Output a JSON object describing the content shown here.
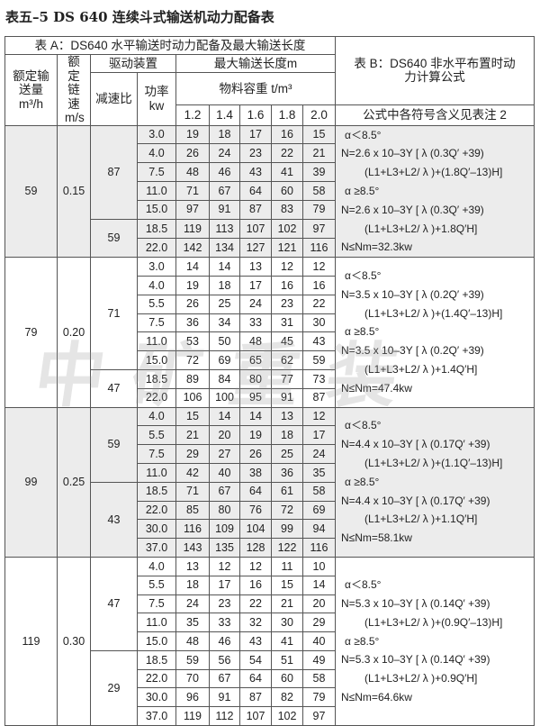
{
  "title": "表五–5 DS 640 连续斗式输送机动力配备表",
  "watermark": "中矿重装",
  "header": {
    "table_a": "表 A：DS640 水平输送时动力配备及最大输送长度",
    "table_b": "表 B：DS640 非水平布置时动力计算公式",
    "capacity": "额定输送量m³/h",
    "speed": "额定链速m/s",
    "drive": "驱动装置",
    "ratio": "减速比",
    "power": "功率kw",
    "max_length": "最大输送长度m",
    "density": "物料容重 t/m³",
    "densities": [
      "1.2",
      "1.4",
      "1.6",
      "1.8",
      "2.0"
    ],
    "note": "公式中各符号含义见表注 2"
  },
  "groups": [
    {
      "capacity": "59",
      "speed": "0.15",
      "shaded": true,
      "formula": [
        "α＜8.5°",
        "N=2.6 x 10–3Y [ λ (0.3Q′ +39)",
        "(L1+L3+L2/ λ )+(1.8Q′–13)H]",
        "α ≥8.5°",
        "N=2.6 x 10–3Y [ λ (0.3Q′ +39)",
        "(L1+L3+L2/ λ )+1.8Q′H]",
        "N≤Nm=32.3kw"
      ],
      "drives": [
        {
          "ratio": "87",
          "rows": [
            {
              "power": "3.0",
              "lengths": [
                "19",
                "18",
                "17",
                "16",
                "15"
              ]
            },
            {
              "power": "4.0",
              "lengths": [
                "26",
                "24",
                "23",
                "22",
                "21"
              ]
            },
            {
              "power": "7.5",
              "lengths": [
                "48",
                "46",
                "43",
                "41",
                "39"
              ]
            },
            {
              "power": "11.0",
              "lengths": [
                "71",
                "67",
                "64",
                "60",
                "58"
              ]
            },
            {
              "power": "15.0",
              "lengths": [
                "97",
                "91",
                "87",
                "83",
                "79"
              ]
            }
          ]
        },
        {
          "ratio": "59",
          "rows": [
            {
              "power": "18.5",
              "lengths": [
                "119",
                "113",
                "107",
                "102",
                "97"
              ]
            },
            {
              "power": "22.0",
              "lengths": [
                "142",
                "134",
                "127",
                "121",
                "116"
              ]
            }
          ]
        }
      ]
    },
    {
      "capacity": "79",
      "speed": "0.20",
      "shaded": false,
      "formula": [
        "α＜8.5°",
        "N=3.5 x 10–3Y [ λ (0.2Q′ +39)",
        "(L1+L3+L2/ λ )+(1.4Q′–13)H]",
        "α ≥8.5°",
        "N=3.5 x 10–3Y [ λ (0.2Q′ +39)",
        "(L1+L3+L2/ λ )+1.4Q′H]",
        "N≤Nm=47.4kw"
      ],
      "drives": [
        {
          "ratio": "71",
          "rows": [
            {
              "power": "3.0",
              "lengths": [
                "14",
                "14",
                "13",
                "12",
                "12"
              ]
            },
            {
              "power": "4.0",
              "lengths": [
                "19",
                "18",
                "17",
                "16",
                "16"
              ]
            },
            {
              "power": "5.5",
              "lengths": [
                "26",
                "25",
                "24",
                "23",
                "22"
              ]
            },
            {
              "power": "7.5",
              "lengths": [
                "36",
                "34",
                "33",
                "31",
                "30"
              ]
            },
            {
              "power": "11.0",
              "lengths": [
                "53",
                "50",
                "48",
                "45",
                "43"
              ]
            },
            {
              "power": "15.0",
              "lengths": [
                "72",
                "69",
                "65",
                "62",
                "59"
              ]
            }
          ]
        },
        {
          "ratio": "47",
          "rows": [
            {
              "power": "18.5",
              "lengths": [
                "89",
                "84",
                "80",
                "77",
                "73"
              ]
            },
            {
              "power": "22.0",
              "lengths": [
                "106",
                "100",
                "95",
                "91",
                "87"
              ]
            }
          ]
        }
      ]
    },
    {
      "capacity": "99",
      "speed": "0.25",
      "shaded": true,
      "formula": [
        "α＜8.5°",
        "N=4.4 x 10–3Y [ λ (0.17Q′ +39)",
        "(L1+L3+L2/ λ )+(1.1Q′–13)H]",
        "α ≥8.5°",
        "N=4.4 x 10–3Y [ λ (0.17Q′ +39)",
        "(L1+L3+L2/ λ )+1.1Q′H]",
        "N≤Nm=58.1kw"
      ],
      "drives": [
        {
          "ratio": "59",
          "rows": [
            {
              "power": "4.0",
              "lengths": [
                "15",
                "14",
                "14",
                "13",
                "12"
              ]
            },
            {
              "power": "5.5",
              "lengths": [
                "21",
                "20",
                "19",
                "18",
                "17"
              ]
            },
            {
              "power": "7.5",
              "lengths": [
                "29",
                "27",
                "26",
                "25",
                "24"
              ]
            },
            {
              "power": "11.0",
              "lengths": [
                "42",
                "40",
                "38",
                "36",
                "35"
              ]
            }
          ]
        },
        {
          "ratio": "43",
          "rows": [
            {
              "power": "18.5",
              "lengths": [
                "71",
                "67",
                "64",
                "61",
                "58"
              ]
            },
            {
              "power": "22.0",
              "lengths": [
                "85",
                "80",
                "76",
                "72",
                "69"
              ]
            },
            {
              "power": "30.0",
              "lengths": [
                "116",
                "109",
                "104",
                "99",
                "94"
              ]
            },
            {
              "power": "37.0",
              "lengths": [
                "143",
                "135",
                "128",
                "122",
                "116"
              ]
            }
          ]
        }
      ]
    },
    {
      "capacity": "119",
      "speed": "0.30",
      "shaded": false,
      "formula": [
        "α＜8.5°",
        "N=5.3 x 10–3Y [ λ (0.14Q′ +39)",
        "(L1+L3+L2/ λ )+(0.9Q′–13)H]",
        "α ≥8.5°",
        "N=5.3 x 10–3Y [ λ (0.14Q′ +39)",
        "(L1+L3+L2/ λ )+0.9Q′H]",
        "N≤Nm=64.6kw"
      ],
      "drives": [
        {
          "ratio": "47",
          "rows": [
            {
              "power": "4.0",
              "lengths": [
                "13",
                "12",
                "12",
                "11",
                "10"
              ]
            },
            {
              "power": "5.5",
              "lengths": [
                "18",
                "17",
                "16",
                "15",
                "14"
              ]
            },
            {
              "power": "7.5",
              "lengths": [
                "24",
                "23",
                "22",
                "21",
                "20"
              ]
            },
            {
              "power": "11.0",
              "lengths": [
                "35",
                "33",
                "32",
                "30",
                "29"
              ]
            },
            {
              "power": "15.0",
              "lengths": [
                "48",
                "46",
                "43",
                "41",
                "40"
              ]
            }
          ]
        },
        {
          "ratio": "29",
          "rows": [
            {
              "power": "18.5",
              "lengths": [
                "59",
                "56",
                "54",
                "51",
                "49"
              ]
            },
            {
              "power": "22.0",
              "lengths": [
                "70",
                "67",
                "64",
                "60",
                "58"
              ]
            },
            {
              "power": "30.0",
              "lengths": [
                "96",
                "91",
                "87",
                "82",
                "79"
              ]
            },
            {
              "power": "37.0",
              "lengths": [
                "119",
                "112",
                "107",
                "102",
                "97"
              ]
            }
          ]
        }
      ]
    }
  ]
}
